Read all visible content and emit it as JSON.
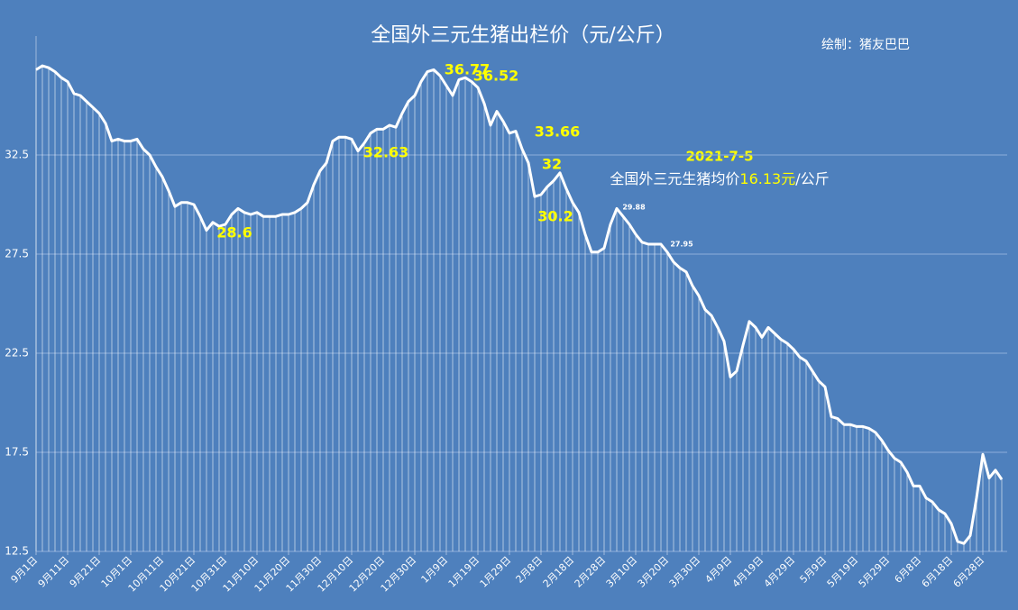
{
  "chart_data": {
    "type": "line",
    "title": "全国外三元生猪出栏价（元/公斤）",
    "credit": "绘制：猪友巴巴",
    "date_note": "2021-7-5",
    "price_note": [
      "全国外三元生猪均价",
      "16.13元",
      "/公斤"
    ],
    "annotations": [
      "36.77",
      "36.52",
      "32.63",
      "28.6",
      "33.66",
      "32",
      "30.2",
      "29.88",
      "27.95"
    ],
    "categories": [
      "9月1日",
      null,
      null,
      null,
      null,
      "9月11日",
      null,
      null,
      null,
      null,
      "9月21日",
      null,
      null,
      null,
      null,
      "10月1日",
      null,
      null,
      null,
      null,
      "10月11日",
      null,
      null,
      null,
      null,
      "10月21日",
      null,
      null,
      null,
      null,
      "10月31日",
      null,
      null,
      null,
      null,
      "11月10日",
      null,
      null,
      null,
      null,
      "11月20日",
      null,
      null,
      null,
      null,
      "11月30日",
      null,
      null,
      null,
      null,
      "12月10日",
      null,
      null,
      null,
      null,
      "12月20日",
      null,
      null,
      null,
      null,
      "12月30日",
      null,
      null,
      null,
      null,
      "1月9日",
      null,
      null,
      null,
      null,
      "1月19日",
      null,
      null,
      null,
      null,
      "1月29日",
      null,
      null,
      null,
      null,
      "2月8日",
      null,
      null,
      null,
      null,
      "2月18日",
      null,
      null,
      null,
      null,
      "2月28日",
      null,
      null,
      null,
      null,
      "3月10日",
      null,
      null,
      null,
      null,
      "3月20日",
      null,
      null,
      null,
      null,
      "3月30日",
      null,
      null,
      null,
      null,
      "4月9日",
      null,
      null,
      null,
      null,
      "4月19日",
      null,
      null,
      null,
      null,
      "4月29日",
      null,
      null,
      null,
      null,
      "5月9日",
      null,
      null,
      null,
      null,
      "5月19日",
      null,
      null,
      null,
      null,
      "5月29日",
      null,
      null,
      null,
      null,
      "6月8日",
      null,
      null,
      null,
      null,
      "6月18日",
      null,
      null,
      null,
      null,
      "6月28日",
      null,
      null,
      null
    ],
    "values": [
      36.8,
      37.0,
      36.9,
      36.7,
      36.4,
      36.2,
      35.6,
      35.5,
      35.2,
      34.9,
      34.6,
      34.1,
      33.2,
      33.3,
      33.2,
      33.2,
      33.3,
      32.8,
      32.5,
      31.9,
      31.4,
      30.7,
      29.9,
      30.1,
      30.1,
      30.0,
      29.4,
      28.7,
      29.1,
      28.9,
      29.0,
      29.5,
      29.8,
      29.6,
      29.5,
      29.6,
      29.4,
      29.4,
      29.4,
      29.5,
      29.5,
      29.6,
      29.8,
      30.1,
      31.0,
      31.7,
      32.1,
      33.2,
      33.4,
      33.4,
      33.3,
      32.7,
      33.1,
      33.6,
      33.8,
      33.8,
      34.0,
      33.9,
      34.6,
      35.2,
      35.5,
      36.2,
      36.7,
      36.8,
      36.5,
      36.0,
      35.5,
      36.3,
      36.4,
      36.2,
      35.9,
      35.1,
      34.0,
      34.7,
      34.2,
      33.6,
      33.7,
      32.8,
      32.1,
      30.4,
      30.5,
      30.9,
      31.2,
      31.6,
      30.8,
      30.1,
      29.6,
      28.5,
      27.6,
      27.6,
      27.8,
      29.0,
      29.8,
      29.4,
      29.0,
      28.5,
      28.1,
      28.0,
      28.0,
      28.0,
      27.6,
      27.1,
      26.8,
      26.6,
      25.9,
      25.4,
      24.7,
      24.4,
      23.8,
      23.1,
      21.3,
      21.6,
      22.9,
      24.1,
      23.8,
      23.3,
      23.8,
      23.5,
      23.2,
      23.0,
      22.7,
      22.3,
      22.1,
      21.6,
      21.1,
      20.8,
      19.3,
      19.2,
      18.9,
      18.9,
      18.8,
      18.8,
      18.7,
      18.5,
      18.1,
      17.6,
      17.2,
      17.0,
      16.5,
      15.8,
      15.8,
      15.2,
      15.0,
      14.6,
      14.4,
      13.9,
      13.0,
      12.9,
      13.3,
      15.2,
      17.4,
      16.2,
      16.6,
      16.13
    ],
    "color": "#ffffff",
    "ylim": [
      12.5,
      38.5
    ],
    "yticks": [
      12.5,
      17.5,
      22.5,
      27.5,
      32.5
    ],
    "grid": true
  }
}
